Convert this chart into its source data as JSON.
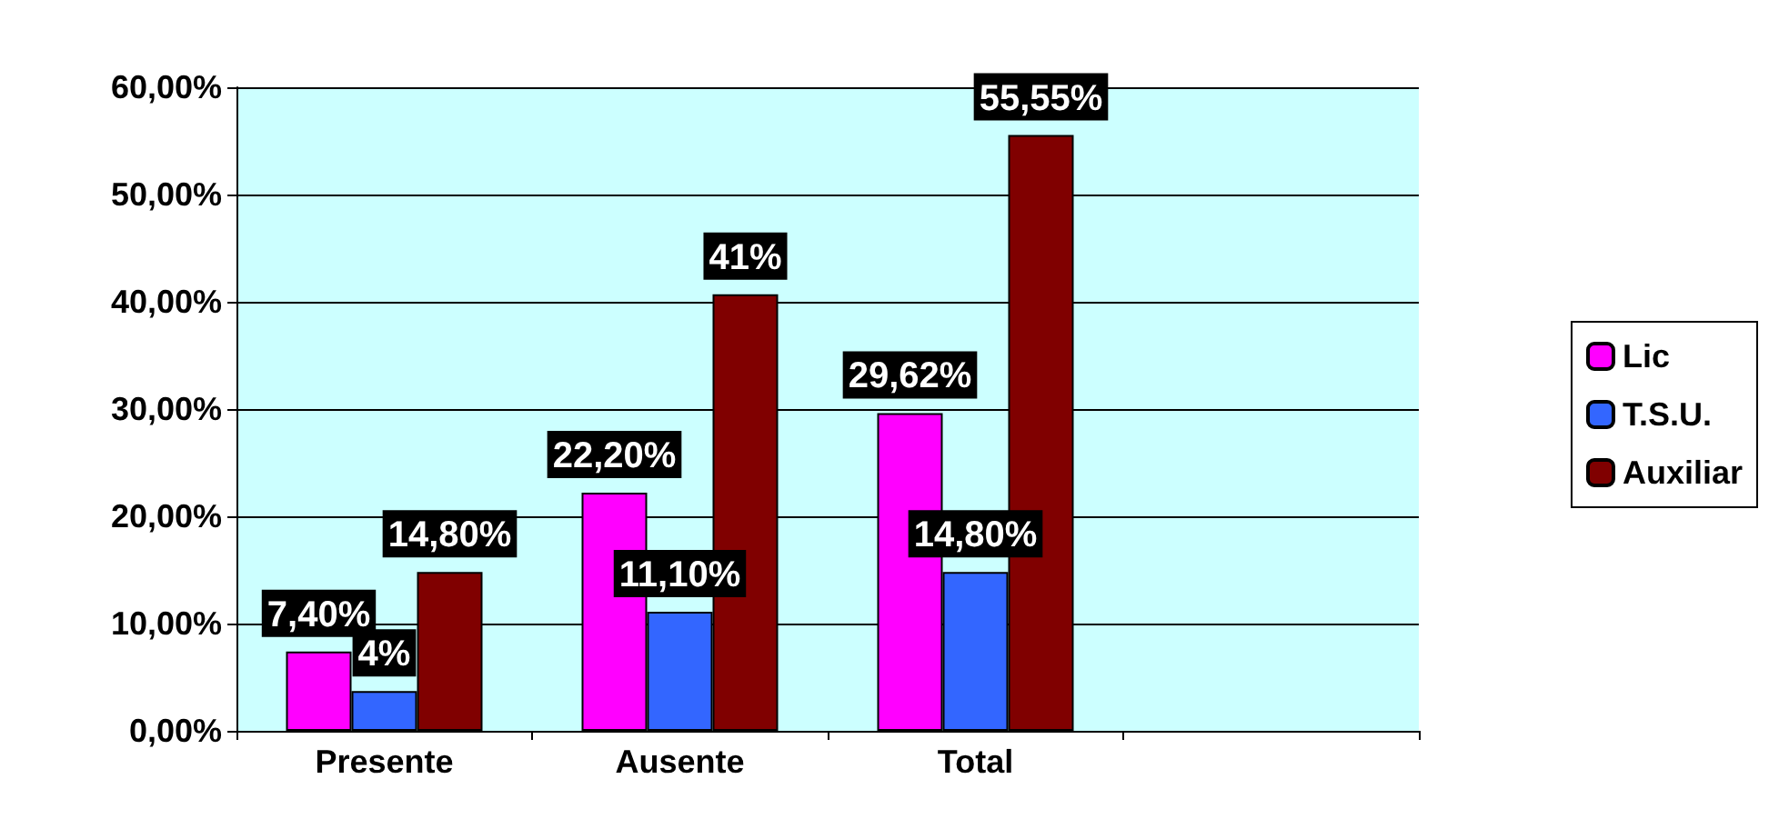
{
  "chart_data": {
    "type": "bar",
    "categories": [
      "Presente",
      "Ausente",
      "Total",
      null
    ],
    "series": [
      {
        "name": "Lic",
        "color": "#ff00ff",
        "values": [
          7.4,
          22.2,
          29.62,
          null
        ],
        "value_labels": [
          "7,40%",
          "22,20%",
          "29,62%",
          null
        ]
      },
      {
        "name": "T.S.U.",
        "color": "#3366ff",
        "values": [
          3.7,
          11.1,
          14.8,
          null
        ],
        "value_labels": [
          "4%",
          "11,10%",
          "14,80%",
          null
        ]
      },
      {
        "name": "Auxiliar",
        "color": "#800000",
        "values": [
          14.8,
          40.7,
          55.55,
          null
        ],
        "value_labels": [
          "14,80%",
          "41%",
          "55,55%",
          null
        ]
      }
    ],
    "ylim": [
      0,
      60
    ],
    "yticks": [
      {
        "value": 0,
        "label": "0,00%"
      },
      {
        "value": 10,
        "label": "10,00%"
      },
      {
        "value": 20,
        "label": "20,00%"
      },
      {
        "value": 30,
        "label": "30,00%"
      },
      {
        "value": 40,
        "label": "40,00%"
      },
      {
        "value": 50,
        "label": "50,00%"
      },
      {
        "value": 60,
        "label": "60,00%"
      }
    ],
    "grid": "y",
    "legend": "right"
  }
}
